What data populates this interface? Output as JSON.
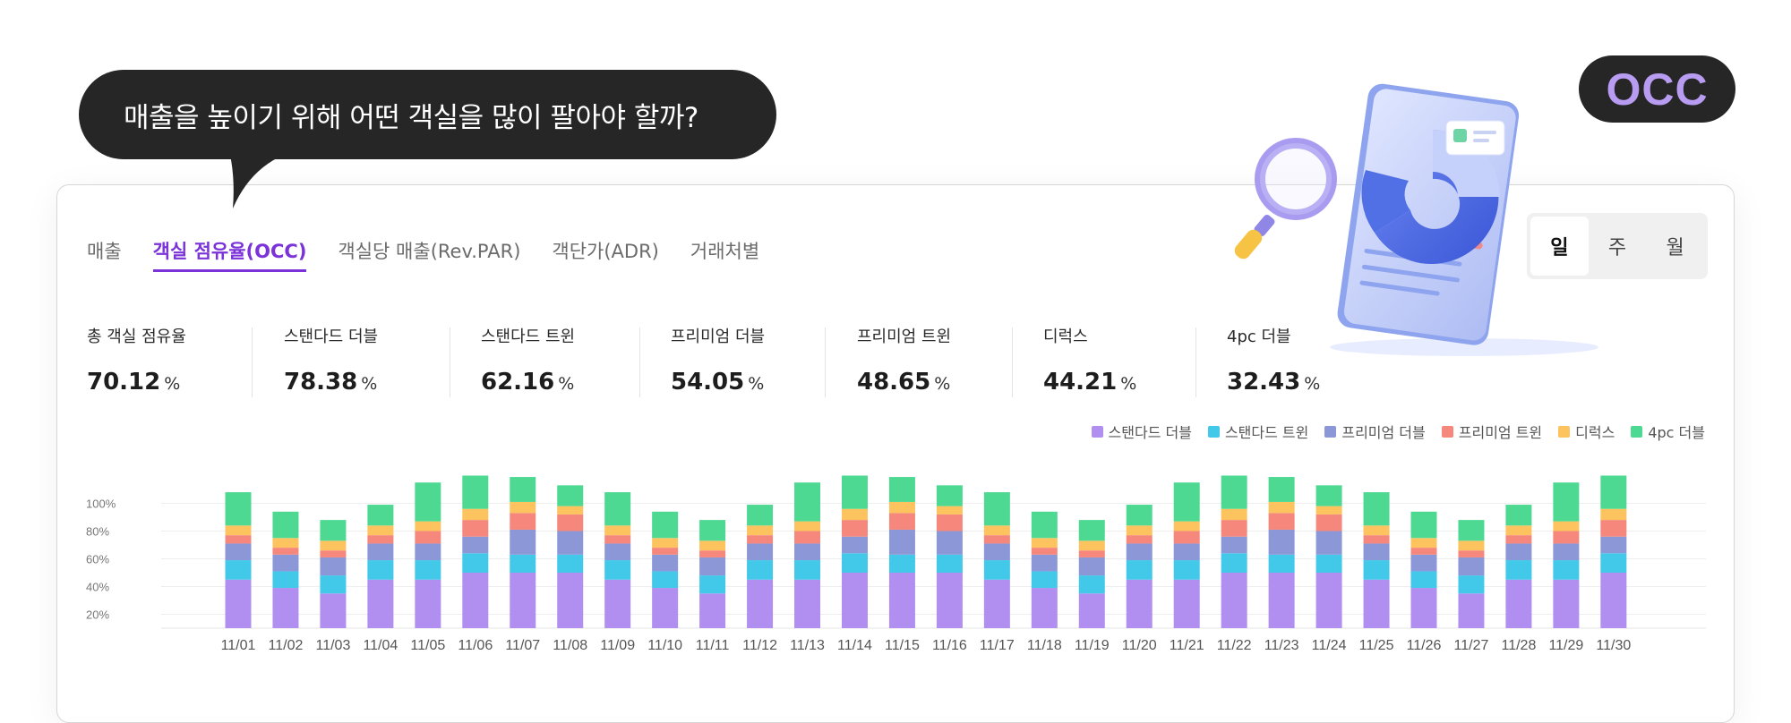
{
  "header": {
    "speech_bubble": "매출을 높이기 위해 어떤 객실을 많이 팔아야 할까?",
    "badge": "OCC"
  },
  "tabs": [
    {
      "label": "매출"
    },
    {
      "label": "객실 점유율(OCC)"
    },
    {
      "label": "객실당 매출(Rev.PAR)"
    },
    {
      "label": "객단가(ADR)"
    },
    {
      "label": "거래처별"
    }
  ],
  "period": [
    {
      "label": "일"
    },
    {
      "label": "주"
    },
    {
      "label": "월"
    }
  ],
  "stats": [
    {
      "label": "총 객실 점유율",
      "value": "70.12",
      "unit": "%"
    },
    {
      "label": "스탠다드 더블",
      "value": "78.38",
      "unit": "%"
    },
    {
      "label": "스탠다드 트윈",
      "value": "62.16",
      "unit": "%"
    },
    {
      "label": "프리미엄 더블",
      "value": "54.05",
      "unit": "%"
    },
    {
      "label": "프리미엄 트윈",
      "value": "48.65",
      "unit": "%"
    },
    {
      "label": "디럭스",
      "value": "44.21",
      "unit": "%"
    },
    {
      "label": "4pc 더블",
      "value": "32.43",
      "unit": "%"
    }
  ],
  "colors": {
    "accent": "#7b32d9",
    "badge_text": "#b89cf2",
    "bubble_bg": "#262626"
  },
  "chart_data": {
    "type": "bar",
    "stacked": true,
    "grid": true,
    "legend_position": "top-right",
    "y_ticks": [
      "20%",
      "40%",
      "60%",
      "80%",
      "100%"
    ],
    "ylim": [
      10,
      110
    ],
    "categories": [
      "11/01",
      "11/02",
      "11/03",
      "11/04",
      "11/05",
      "11/06",
      "11/07",
      "11/08",
      "11/09",
      "11/10",
      "11/11",
      "11/12",
      "11/13",
      "11/14",
      "11/15",
      "11/16",
      "11/17",
      "11/18",
      "11/19",
      "11/20",
      "11/21",
      "11/22",
      "11/23",
      "11/24",
      "11/25",
      "11/26",
      "11/27",
      "11/28",
      "11/29",
      "11/30"
    ],
    "series": [
      {
        "name": "스탠다드 더블",
        "color": "#b18ff0",
        "values": [
          35,
          29,
          25,
          35,
          35,
          40,
          40,
          40,
          35,
          29,
          25,
          35,
          35,
          40,
          40,
          40,
          35,
          29,
          25,
          35,
          35,
          40,
          40,
          40,
          35,
          29,
          25,
          35,
          35,
          40
        ]
      },
      {
        "name": "스탠다드 트윈",
        "color": "#42c8e8",
        "values": [
          14,
          12,
          13,
          14,
          14,
          14,
          13,
          13,
          14,
          12,
          13,
          14,
          14,
          14,
          13,
          13,
          14,
          12,
          13,
          14,
          14,
          14,
          13,
          13,
          14,
          12,
          13,
          14,
          14,
          14
        ]
      },
      {
        "name": "프리미엄 더블",
        "color": "#8c97d8",
        "values": [
          12,
          12,
          13,
          12,
          12,
          12,
          18,
          17,
          12,
          12,
          13,
          12,
          12,
          12,
          18,
          17,
          12,
          12,
          13,
          12,
          12,
          12,
          18,
          17,
          12,
          12,
          13,
          12,
          12,
          12
        ]
      },
      {
        "name": "프리미엄 트윈",
        "color": "#f5877c",
        "values": [
          6,
          5,
          5,
          6,
          9,
          12,
          12,
          12,
          6,
          5,
          5,
          6,
          9,
          12,
          12,
          12,
          6,
          5,
          5,
          6,
          9,
          12,
          12,
          12,
          6,
          5,
          5,
          6,
          9,
          12
        ]
      },
      {
        "name": "디럭스",
        "color": "#fcc35f",
        "values": [
          7,
          7,
          7,
          7,
          7,
          8,
          8,
          6,
          7,
          7,
          7,
          7,
          7,
          8,
          8,
          6,
          7,
          7,
          7,
          7,
          7,
          8,
          8,
          6,
          7,
          7,
          7,
          7,
          7,
          8
        ]
      },
      {
        "name": "4pc 더블",
        "color": "#4dd991",
        "values": [
          24,
          19,
          15,
          15,
          28,
          24,
          18,
          15,
          24,
          19,
          15,
          15,
          28,
          24,
          18,
          15,
          24,
          19,
          15,
          15,
          28,
          24,
          18,
          15,
          24,
          19,
          15,
          15,
          28,
          24
        ]
      }
    ]
  }
}
